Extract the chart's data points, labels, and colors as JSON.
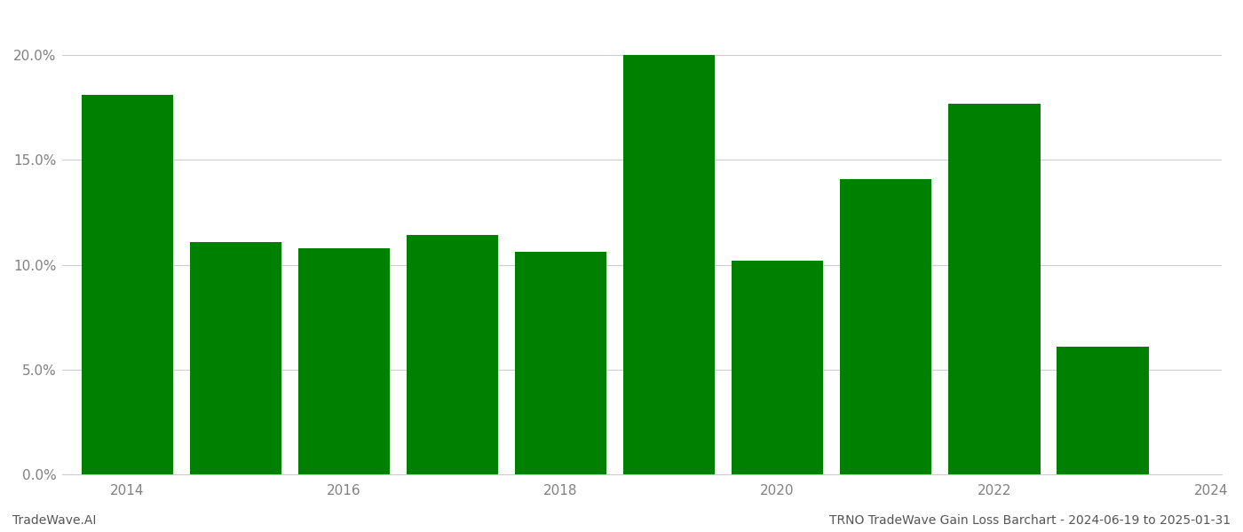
{
  "years": [
    2014,
    2015,
    2016,
    2017,
    2018,
    2019,
    2020,
    2021,
    2022,
    2023
  ],
  "values": [
    0.181,
    0.111,
    0.108,
    0.114,
    0.106,
    0.2,
    0.102,
    0.141,
    0.177,
    0.061
  ],
  "bar_color": "#008000",
  "background_color": "#ffffff",
  "grid_color": "#cccccc",
  "ylabel_color": "#808080",
  "xlabel_color": "#808080",
  "title_left": "TradeWave.AI",
  "title_right": "TRNO TradeWave Gain Loss Barchart - 2024-06-19 to 2025-01-31",
  "footer_fontsize": 10,
  "ylim": [
    0.0,
    0.22
  ],
  "yticks": [
    0.0,
    0.05,
    0.1,
    0.15,
    0.2
  ],
  "ytick_labels": [
    "0.0%",
    "5.0%",
    "10.0%",
    "15.0%",
    "20.0%"
  ],
  "xtick_years": [
    2014,
    2016,
    2018,
    2020,
    2022,
    2024
  ],
  "bar_width": 0.85,
  "xlim": [
    2013.4,
    2024.1
  ]
}
